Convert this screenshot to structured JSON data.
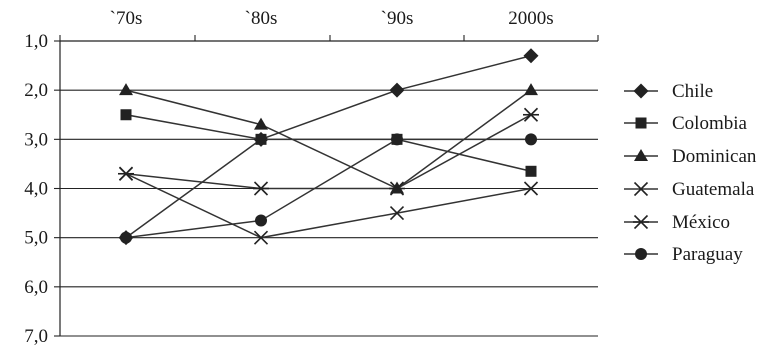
{
  "chart_data": {
    "type": "line",
    "categories": [
      "`70s",
      "`80s",
      "`90s",
      "2000s"
    ],
    "ylim": [
      1.0,
      7.0
    ],
    "y_inverted": true,
    "y_ticks": [
      "1,0",
      "2,0",
      "3,0",
      "4,0",
      "5,0",
      "6,0",
      "7,0"
    ],
    "x_axis_position": "top",
    "grid": "horizontal",
    "legend_position": "right",
    "series": [
      {
        "name": "Chile",
        "marker": "diamond",
        "values": [
          5.0,
          3.0,
          2.0,
          1.3
        ]
      },
      {
        "name": "Colombia",
        "marker": "square",
        "values": [
          2.5,
          3.0,
          3.0,
          3.65
        ]
      },
      {
        "name": "Dominican",
        "marker": "triangle",
        "values": [
          2.0,
          2.7,
          4.0,
          2.0
        ]
      },
      {
        "name": "Guatemala",
        "marker": "x",
        "values": [
          3.7,
          5.0,
          4.5,
          4.0
        ]
      },
      {
        "name": "México",
        "marker": "asterisk",
        "values": [
          3.7,
          4.0,
          4.0,
          2.5
        ]
      },
      {
        "name": "Paraguay",
        "marker": "circle",
        "values": [
          5.0,
          4.65,
          3.0,
          3.0
        ]
      }
    ]
  }
}
